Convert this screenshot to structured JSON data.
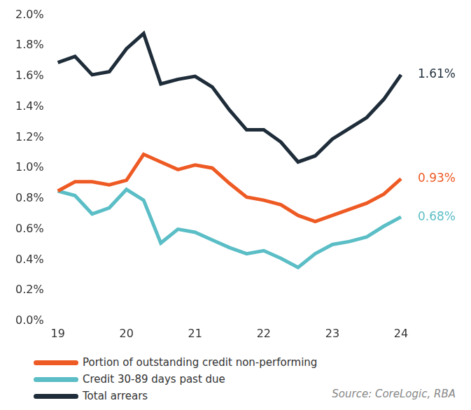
{
  "chart_data": {
    "type": "line",
    "categories": [
      "19",
      null,
      null,
      null,
      "20",
      null,
      null,
      null,
      "21",
      null,
      null,
      null,
      "22",
      null,
      null,
      null,
      "23",
      null,
      null,
      null,
      "24"
    ],
    "series": [
      {
        "name": "Portion of outstanding credit non-performing",
        "color": "#ee5a24",
        "values": [
          0.85,
          0.91,
          0.91,
          0.89,
          0.92,
          1.09,
          1.04,
          0.99,
          1.02,
          1.0,
          0.9,
          0.81,
          0.79,
          0.76,
          0.69,
          0.65,
          0.69,
          0.73,
          0.77,
          0.83,
          0.93
        ],
        "value_labels": [
          null,
          null,
          null,
          null,
          null,
          null,
          null,
          null,
          null,
          null,
          null,
          null,
          null,
          null,
          null,
          null,
          null,
          null,
          null,
          null,
          "0.93%"
        ]
      },
      {
        "name": "Credit 30-89 days past due",
        "color": "#5bbec6",
        "values": [
          0.85,
          0.82,
          0.7,
          0.74,
          0.86,
          0.79,
          0.51,
          0.6,
          0.58,
          0.53,
          0.48,
          0.44,
          0.46,
          0.41,
          0.35,
          0.44,
          0.5,
          0.52,
          0.55,
          0.62,
          0.68
        ],
        "value_labels": [
          null,
          null,
          null,
          null,
          null,
          null,
          null,
          null,
          null,
          null,
          null,
          null,
          null,
          null,
          null,
          null,
          null,
          null,
          null,
          null,
          "0.68%"
        ]
      },
      {
        "name": "Total arrears",
        "color": "#1f2d3a",
        "values": [
          1.69,
          1.73,
          1.61,
          1.63,
          1.78,
          1.88,
          1.55,
          1.58,
          1.6,
          1.53,
          1.38,
          1.25,
          1.25,
          1.17,
          1.04,
          1.08,
          1.19,
          1.26,
          1.33,
          1.45,
          1.61
        ],
        "value_labels": [
          null,
          null,
          null,
          null,
          null,
          null,
          null,
          null,
          null,
          null,
          null,
          null,
          null,
          null,
          null,
          null,
          null,
          null,
          null,
          null,
          "1.61%"
        ]
      }
    ],
    "ylim": [
      0,
      2
    ],
    "yticks": [
      {
        "value": 0,
        "label": "0.0%"
      },
      {
        "value": 0.2,
        "label": "0.2%"
      },
      {
        "value": 0.4,
        "label": "0.4%"
      },
      {
        "value": 0.6,
        "label": "0.6%"
      },
      {
        "value": 0.8,
        "label": "0.8%"
      },
      {
        "value": 1,
        "label": "1.0%"
      },
      {
        "value": 1.2,
        "label": "1.2%"
      },
      {
        "value": 1.4,
        "label": "1.4%"
      },
      {
        "value": 1.6,
        "label": "1.6%"
      },
      {
        "value": 1.8,
        "label": "1.8%"
      },
      {
        "value": 2,
        "label": "2.0%"
      }
    ],
    "grid": false,
    "data_labels": true,
    "source": "Source:  CoreLogic, RBA"
  }
}
